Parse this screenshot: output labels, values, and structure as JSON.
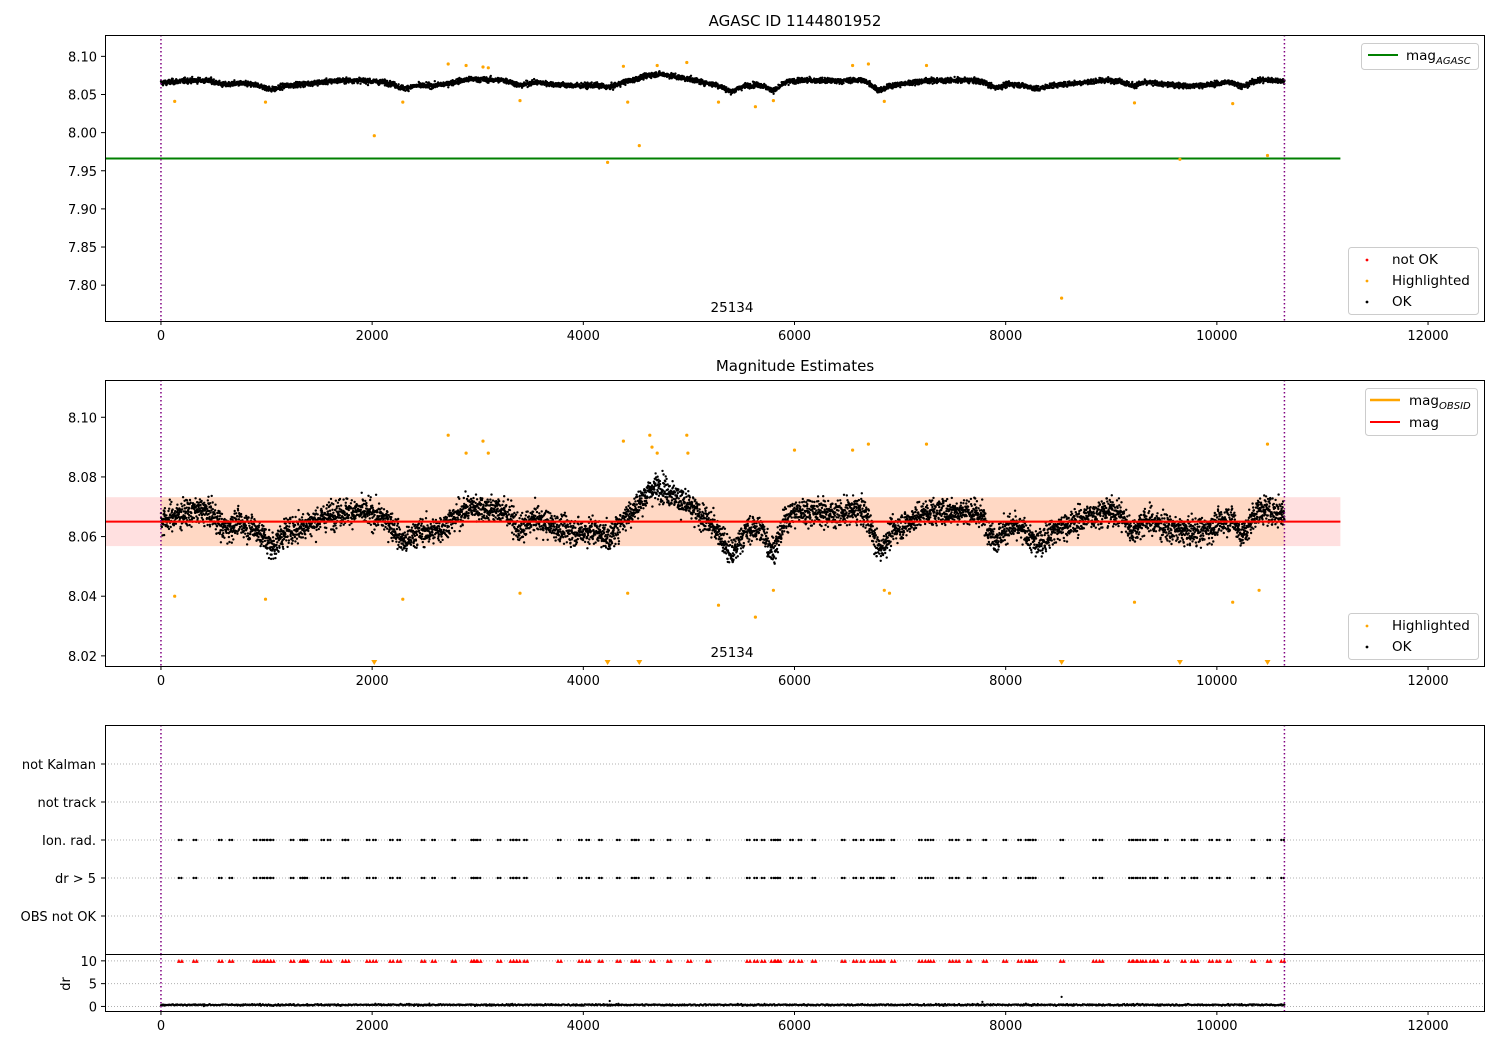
{
  "chart_data": [
    {
      "type": "scatter",
      "title": "AGASC ID 1144801952",
      "xlabel": "",
      "ylabel": "",
      "xlim": [
        -530,
        12530
      ],
      "ylim": [
        7.753,
        8.128
      ],
      "x_ticks": [
        0,
        2000,
        4000,
        6000,
        8000,
        10000,
        12000
      ],
      "x_tick_labels": [
        "0",
        "2000",
        "4000",
        "6000",
        "8000",
        "10000",
        "12000"
      ],
      "y_ticks": [
        7.8,
        7.85,
        7.9,
        7.95,
        8.0,
        8.05,
        8.1
      ],
      "y_tick_labels": [
        "7.80",
        "7.85",
        "7.90",
        "7.95",
        "8.00",
        "8.05",
        "8.10"
      ],
      "annotation": "25134",
      "observation_boundaries": [
        0,
        10640
      ],
      "lines": [
        {
          "name": "mag",
          "subscript": "AGASC",
          "y": 7.966,
          "color": "#008000",
          "x_end": 11170
        }
      ],
      "series": [
        {
          "name": "not OK",
          "color": "#ff0000",
          "x": [],
          "y": []
        },
        {
          "name": "Highlighted",
          "color": "#ffa500",
          "x": [
            130,
            990,
            2020,
            2290,
            2720,
            2890,
            3050,
            3100,
            3400,
            4230,
            4380,
            4420,
            4530,
            4700,
            4980,
            5280,
            5630,
            5800,
            6550,
            6700,
            6850,
            7250,
            8530,
            9220,
            9650,
            10150,
            10480
          ],
          "y": [
            8.041,
            8.04,
            7.996,
            8.04,
            8.09,
            8.088,
            8.086,
            8.085,
            8.042,
            7.961,
            8.087,
            8.04,
            7.983,
            8.088,
            8.092,
            8.04,
            8.034,
            8.042,
            8.088,
            8.09,
            8.041,
            8.088,
            7.783,
            8.039,
            7.965,
            8.038,
            7.97
          ]
        },
        {
          "name": "OK",
          "color": "#000000",
          "baseline": 8.065,
          "band": [
            8.04,
            8.09
          ],
          "x_range": [
            0,
            10640
          ],
          "n": 5400
        }
      ],
      "legend": {
        "lines_position": "top-right",
        "points_position": "lower-right"
      }
    },
    {
      "type": "scatter",
      "title": "Magnitude Estimates",
      "xlabel": "",
      "ylabel": "",
      "xlim": [
        -530,
        12530
      ],
      "ylim": [
        8.0166,
        8.1125
      ],
      "x_ticks": [
        0,
        2000,
        4000,
        6000,
        8000,
        10000,
        12000
      ],
      "x_tick_labels": [
        "0",
        "2000",
        "4000",
        "6000",
        "8000",
        "10000",
        "12000"
      ],
      "y_ticks": [
        8.02,
        8.04,
        8.06,
        8.08,
        8.1
      ],
      "y_tick_labels": [
        "8.02",
        "8.04",
        "8.06",
        "8.08",
        "8.10"
      ],
      "annotation": "25134",
      "observation_boundaries": [
        0,
        10640
      ],
      "lines": [
        {
          "name": "mag",
          "subscript": "OBSID",
          "y": 8.065,
          "color": "#ffa500",
          "x_end": 10640
        },
        {
          "name": "mag",
          "subscript": "",
          "y": 8.065,
          "color": "#ff0000",
          "x_end": 11170,
          "band": [
            8.0568,
            8.0732
          ]
        }
      ],
      "series": [
        {
          "name": "Highlighted",
          "color": "#ffa500",
          "x": [
            130,
            990,
            2290,
            2720,
            2890,
            3050,
            3100,
            3400,
            4380,
            4420,
            4630,
            4650,
            4700,
            4980,
            4990,
            5280,
            5630,
            5800,
            6000,
            6550,
            6700,
            6850,
            6900,
            7250,
            9220,
            10150,
            10400,
            10480
          ],
          "y": [
            8.04,
            8.039,
            8.039,
            8.094,
            8.088,
            8.092,
            8.088,
            8.041,
            8.092,
            8.041,
            8.094,
            8.09,
            8.088,
            8.094,
            8.088,
            8.037,
            8.033,
            8.042,
            8.089,
            8.089,
            8.091,
            8.042,
            8.041,
            8.091,
            8.038,
            8.038,
            8.042,
            8.091
          ]
        },
        {
          "name": "Highlighted (below range)",
          "color": "#ffa500",
          "x": [
            2020,
            4230,
            4530,
            8530,
            9650,
            10480
          ],
          "y": [
            7.996,
            7.961,
            7.983,
            7.783,
            7.965,
            7.97
          ]
        },
        {
          "name": "OK",
          "color": "#000000",
          "baseline": 8.065,
          "band": [
            8.043,
            8.088
          ],
          "x_range": [
            0,
            10640
          ],
          "n": 6000
        }
      ],
      "legend": {
        "lines_position": "top-right",
        "points_position": "lower-right"
      }
    },
    {
      "type": "scatter",
      "title": "",
      "xlabel": "",
      "ylabel": "",
      "xlim": [
        -530,
        12530
      ],
      "categories": [
        "not Kalman",
        "not track",
        "Ion. rad.",
        "dr > 5",
        "OBS not OK"
      ],
      "observation_boundaries": [
        0,
        10640
      ],
      "flag_times": [
        170,
        310,
        550,
        650,
        880,
        940,
        980,
        1010,
        1040,
        1230,
        1320,
        1340,
        1360,
        1520,
        1580,
        1720,
        1750,
        1950,
        2010,
        2170,
        2240,
        2470,
        2570,
        2760,
        2940,
        2960,
        3000,
        3190,
        3310,
        3340,
        3370,
        3440,
        3760,
        3960,
        4030,
        4150,
        4320,
        4460,
        4500,
        4640,
        4800,
        4990,
        5170,
        5550,
        5620,
        5690,
        5780,
        5820,
        5840,
        5960,
        6040,
        6170,
        6450,
        6560,
        6630,
        6720,
        6780,
        6820,
        6920,
        7180,
        7240,
        7290,
        7470,
        7530,
        7640,
        7790,
        7980,
        8120,
        8190,
        8230,
        8260,
        8520,
        8830,
        8890,
        9170,
        9210,
        9250,
        9300,
        9370,
        9410,
        9510,
        9670,
        9760,
        9790,
        9930,
        10000,
        10100,
        10330,
        10480,
        10610
      ],
      "flag_rows": [
        "Ion. rad.",
        "dr > 5"
      ],
      "dr": {
        "ylabel": "dr",
        "ylim": [
          -1,
          11.5
        ],
        "y_ticks": [
          0,
          5,
          10
        ],
        "y_tick_labels": [
          "0",
          "5",
          "10"
        ],
        "clipped_value": 10,
        "clipped_times": [
          170,
          310,
          550,
          650,
          880,
          940,
          980,
          1010,
          1040,
          1230,
          1320,
          1340,
          1360,
          1520,
          1580,
          1720,
          1750,
          1950,
          2010,
          2170,
          2240,
          2470,
          2570,
          2760,
          2940,
          2960,
          3000,
          3190,
          3310,
          3340,
          3370,
          3440,
          3760,
          3960,
          4030,
          4150,
          4320,
          4460,
          4500,
          4640,
          4800,
          4990,
          5170,
          5550,
          5620,
          5690,
          5780,
          5820,
          5840,
          5960,
          6040,
          6170,
          6450,
          6560,
          6630,
          6720,
          6780,
          6820,
          6920,
          7180,
          7240,
          7290,
          7470,
          7530,
          7640,
          7790,
          7980,
          8120,
          8190,
          8230,
          8260,
          8520,
          8830,
          8890,
          9170,
          9210,
          9250,
          9300,
          9370,
          9410,
          9510,
          9670,
          9760,
          9790,
          9930,
          10000,
          10100,
          10330,
          10480,
          10610
        ],
        "baseline": 0.35,
        "outliers_x": [
          8530,
          4250,
          7780
        ],
        "outliers_y": [
          2.1,
          1.2,
          1.0
        ],
        "colors": {
          "ok": "#000000",
          "clipped": "#ff0000"
        }
      }
    }
  ]
}
